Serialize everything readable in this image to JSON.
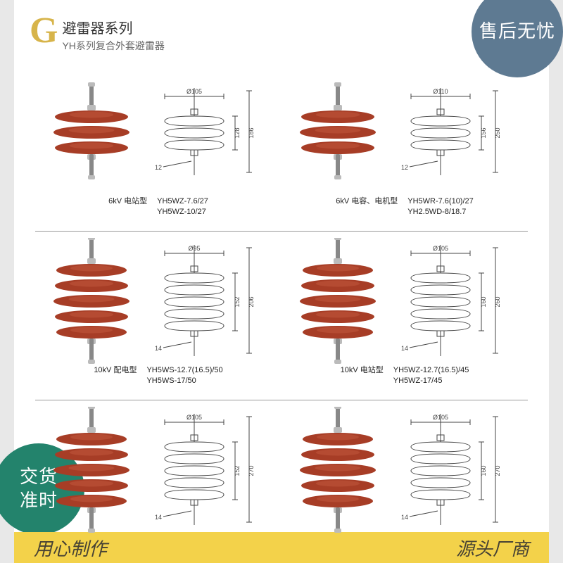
{
  "header": {
    "letter": "G",
    "title": "避雷器系列",
    "subtitle": "YH系列复合外套避雷器"
  },
  "badges": {
    "topRight": "售后无忧",
    "bottomLeft": "交货\n准时"
  },
  "footer": {
    "left": "用心制作",
    "right": "源头厂商"
  },
  "insulator": {
    "body_color": "#a73d26",
    "hilite_color": "#c45a3d",
    "rod_color": "#888888",
    "tip_color": "#bbbbbb"
  },
  "diagram": {
    "line_color": "#444444",
    "text_color": "#333333",
    "font_size": 9
  },
  "items": [
    {
      "side": "L",
      "row": 1,
      "disks": 3,
      "cap_left": "6kV 电站型",
      "cap_right_lines": [
        "YH5WZ-7.6/27",
        "YH5WZ-10/27"
      ],
      "diag": {
        "topDia": "Ø105",
        "height1": "128",
        "height2": "186",
        "thread": "M12"
      }
    },
    {
      "side": "R",
      "row": 1,
      "disks": 3,
      "cap_left": "6kV 电容、电机型",
      "cap_right_lines": [
        "YH5WR-7.6(10)/27",
        "YH2.5WD-8/18.7"
      ],
      "diag": {
        "topDia": "Ø110",
        "height1": "156",
        "height2": "250",
        "thread": "M12"
      }
    },
    {
      "side": "L",
      "row": 2,
      "disks": 5,
      "cap_left": "10kV 配电型",
      "cap_right_lines": [
        "YH5WS-12.7(16.5)/50",
        "YH5WS-17/50"
      ],
      "diag": {
        "topDia": "Ø95",
        "height1": "152",
        "height2": "206",
        "thread": "M14"
      }
    },
    {
      "side": "R",
      "row": 2,
      "disks": 5,
      "cap_left": "10kV 电站型",
      "cap_right_lines": [
        "YH5WZ-12.7(16.5)/45",
        "YH5WZ-17/45"
      ],
      "diag": {
        "topDia": "Ø105",
        "height1": "160",
        "height2": "260",
        "thread": "M14"
      }
    },
    {
      "side": "L",
      "row": 3,
      "disks": 5,
      "cap_left": "",
      "cap_right_lines": [],
      "diag": {
        "topDia": "Ø105",
        "height1": "152",
        "height2": "270",
        "thread": "M14"
      }
    },
    {
      "side": "R",
      "row": 3,
      "disks": 5,
      "cap_left": "",
      "cap_right_lines": [],
      "diag": {
        "topDia": "Ø105",
        "height1": "160",
        "height2": "270",
        "thread": "M14"
      }
    }
  ]
}
